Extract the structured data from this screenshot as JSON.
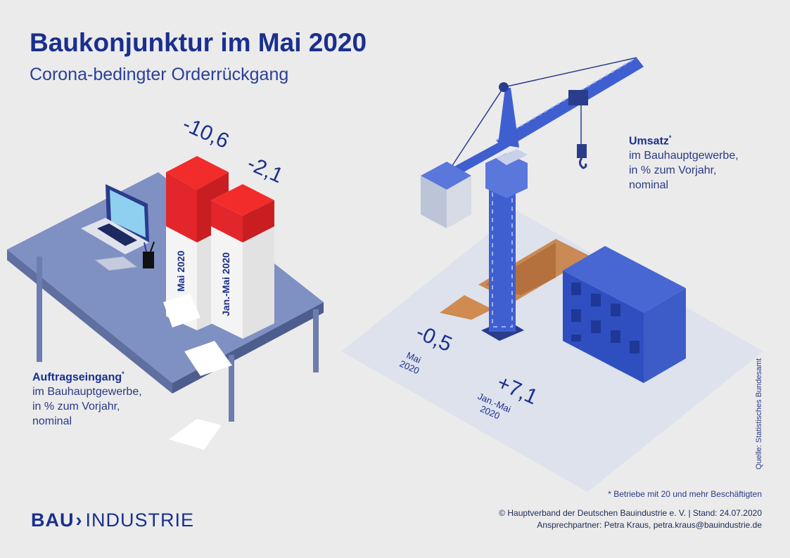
{
  "header": {
    "title": "Baukonjunktur im Mai 2020",
    "subtitle": "Corona-bedingter Orderrückgang"
  },
  "order_intake": {
    "heading": "Auftragseingang",
    "marker": "*",
    "line1": "im Bauhauptgewerbe,",
    "line2": "in % zum Vorjahr,",
    "line3": "nominal",
    "may_value": "-10,6",
    "ytd_value": "-2,1",
    "may_label": "Mai 2020",
    "ytd_label": "Jan.-Mai 2020"
  },
  "sales": {
    "heading": "Umsatz",
    "marker": "*",
    "line1": "im Bauhauptgewerbe,",
    "line2": "in % zum Vorjahr,",
    "line3": "nominal",
    "may_value": "-0,5",
    "ytd_value": "+7,1",
    "may_label_1": "Mai",
    "may_label_2": "2020",
    "ytd_label_1": "Jan.-Mai",
    "ytd_label_2": "2020"
  },
  "footer": {
    "footnote": "* Betriebe mit 20 und mehr Beschäftigten",
    "copyright": "© Hauptverband der Deutschen Bauindustrie e. V. | Stand: 24.07.2020",
    "contact": "Ansprechpartner: Petra Kraus, petra.kraus@bauindustrie.de",
    "source": "Quelle: Statistisches Bundesamt"
  },
  "logo": {
    "bold_part": "BAU",
    "chevron": "›",
    "light_part": "INDUSTRIE"
  },
  "colors": {
    "brand_blue": "#1a2f8e",
    "crane_blue": "#3f5fd0",
    "stack_red": "#e3262b",
    "background": "#ebebeb"
  }
}
